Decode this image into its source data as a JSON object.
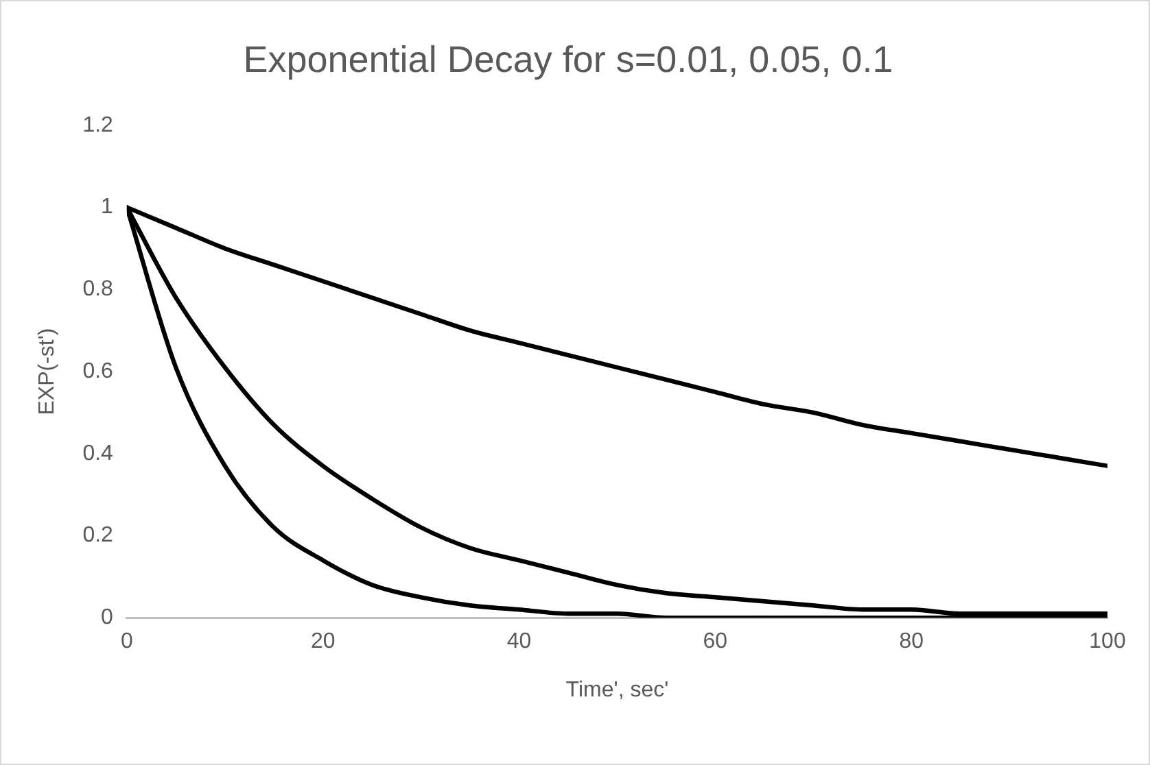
{
  "chart_data": {
    "type": "line",
    "title": "Exponential Decay for s=0.01, 0.05, 0.1",
    "xlabel": "Time', sec'",
    "ylabel": "EXP(-st')",
    "x": [
      0,
      5,
      10,
      15,
      20,
      25,
      30,
      35,
      40,
      45,
      50,
      55,
      60,
      65,
      70,
      75,
      80,
      85,
      90,
      95,
      100
    ],
    "series": [
      {
        "color": "#000000",
        "values": [
          1,
          0.95,
          0.9,
          0.86,
          0.82,
          0.78,
          0.74,
          0.7,
          0.67,
          0.64,
          0.61,
          0.58,
          0.55,
          0.52,
          0.5,
          0.47,
          0.45,
          0.43,
          0.41,
          0.39,
          0.37
        ]
      },
      {
        "color": "#000000",
        "values": [
          1,
          0.78,
          0.61,
          0.47,
          0.37,
          0.29,
          0.22,
          0.17,
          0.14,
          0.11,
          0.08,
          0.06,
          0.05,
          0.04,
          0.03,
          0.02,
          0.02,
          0.01,
          0.01,
          0.01,
          0.01
        ]
      },
      {
        "color": "#000000",
        "values": [
          1,
          0.61,
          0.37,
          0.22,
          0.14,
          0.08,
          0.05,
          0.03,
          0.02,
          0.01,
          0.01,
          0,
          0,
          0,
          0,
          0,
          0,
          0,
          0,
          0,
          0
        ]
      }
    ],
    "xlim": [
      0,
      100
    ],
    "xticks": [
      0,
      20,
      40,
      60,
      80,
      100
    ],
    "ylim": [
      0,
      1.2
    ],
    "yticks": [
      0,
      0.2,
      0.4,
      0.6,
      0.8,
      1,
      1.2
    ],
    "grid": false,
    "legend": false,
    "marker": "none",
    "line_style": "solid"
  }
}
